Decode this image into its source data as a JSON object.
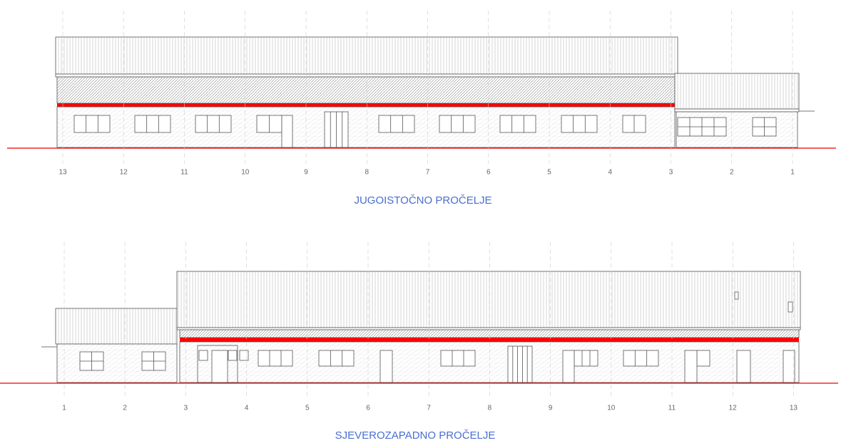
{
  "elevations": [
    {
      "title": "JUGOISTOČNO PROČELJE",
      "grid_labels": [
        "13",
        "12",
        "11",
        "10",
        "9",
        "8",
        "7",
        "6",
        "5",
        "4",
        "3",
        "2",
        "1"
      ]
    },
    {
      "title": "SJEVEROZAPADNO PROČELJE",
      "grid_labels": [
        "1",
        "2",
        "3",
        "4",
        "5",
        "6",
        "7",
        "8",
        "9",
        "10",
        "11",
        "12",
        "13"
      ]
    }
  ]
}
